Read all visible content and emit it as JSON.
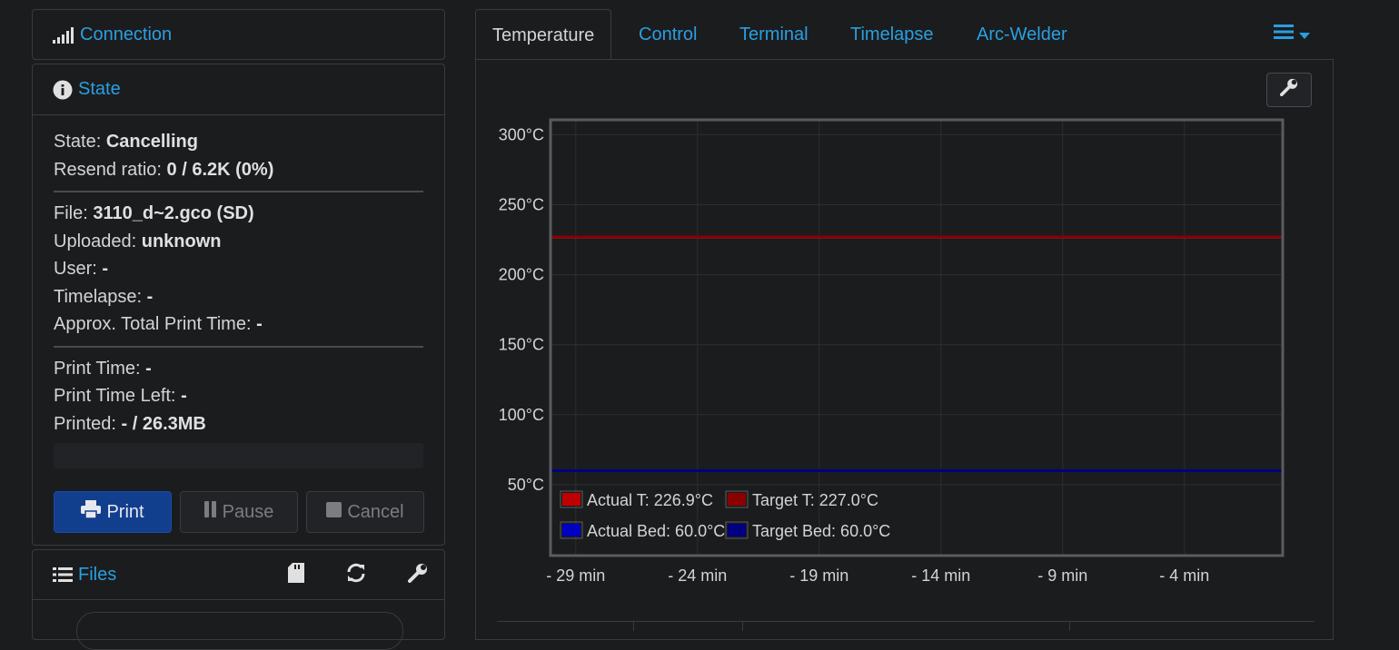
{
  "sidebar": {
    "connection": {
      "title": "Connection",
      "icon": "signal-icon"
    },
    "state": {
      "title": "State",
      "icon": "info-circle-icon",
      "group1": [
        {
          "label": "State:",
          "value": "Cancelling"
        },
        {
          "label": "Resend ratio:",
          "value": "0 / 6.2K (0%)"
        }
      ],
      "group2": [
        {
          "label": "File:",
          "value": "3110_d~2.gco (SD)"
        },
        {
          "label": "Uploaded:",
          "value": "unknown"
        },
        {
          "label": "User:",
          "value": "-"
        },
        {
          "label": "Timelapse:",
          "value": "-"
        },
        {
          "label": "Approx. Total Print Time:",
          "value": "-"
        }
      ],
      "group3": [
        {
          "label": "Print Time:",
          "value": "-"
        },
        {
          "label": "Print Time Left:",
          "value": "-"
        },
        {
          "label": "Printed:",
          "value": "- / 26.3MB"
        }
      ],
      "buttons": {
        "print": "Print",
        "pause": "Pause",
        "cancel": "Cancel"
      }
    },
    "files": {
      "title": "Files",
      "icon": "list-icon"
    }
  },
  "tabs": [
    "Temperature",
    "Control",
    "Terminal",
    "Timelapse",
    "Arc-Welder"
  ],
  "active_tab": "Temperature",
  "colors": {
    "accent": "#2a9fe0",
    "print_button": "#123e8e",
    "actual_tool": "#ff6b6b",
    "target_tool": "#8b0000",
    "actual_bed": "#6b6bff",
    "target_bed": "#000080"
  },
  "chart_data": {
    "type": "line",
    "x_ticks": [
      "- 29 min",
      "- 24 min",
      "- 19 min",
      "- 14 min",
      "- 9 min",
      "- 4 min"
    ],
    "y_ticks": [
      "300°C",
      "250°C",
      "200°C",
      "150°C",
      "100°C",
      "50°C"
    ],
    "y_tick_values": [
      300,
      250,
      200,
      150,
      100,
      50
    ],
    "x_tick_values": [
      -29,
      -24,
      -19,
      -14,
      -9,
      -4
    ],
    "xlim": [
      -30,
      0
    ],
    "ylim": [
      0,
      310
    ],
    "grid": true,
    "legend_position": "bottom-left",
    "series": [
      {
        "name": "Actual T: 226.9°C",
        "color": "#ff6b6b",
        "x": [
          -30,
          0
        ],
        "y": [
          226.9,
          226.9
        ]
      },
      {
        "name": "Target T: 227.0°C",
        "color": "#8b0000",
        "x": [
          -30,
          0
        ],
        "y": [
          227.0,
          227.0
        ]
      },
      {
        "name": "Actual Bed: 60.0°C",
        "color": "#6b6bff",
        "x": [
          -30,
          0
        ],
        "y": [
          60.0,
          60.0
        ]
      },
      {
        "name": "Target Bed: 60.0°C",
        "color": "#000080",
        "x": [
          -30,
          0
        ],
        "y": [
          60.0,
          60.0
        ]
      }
    ]
  }
}
